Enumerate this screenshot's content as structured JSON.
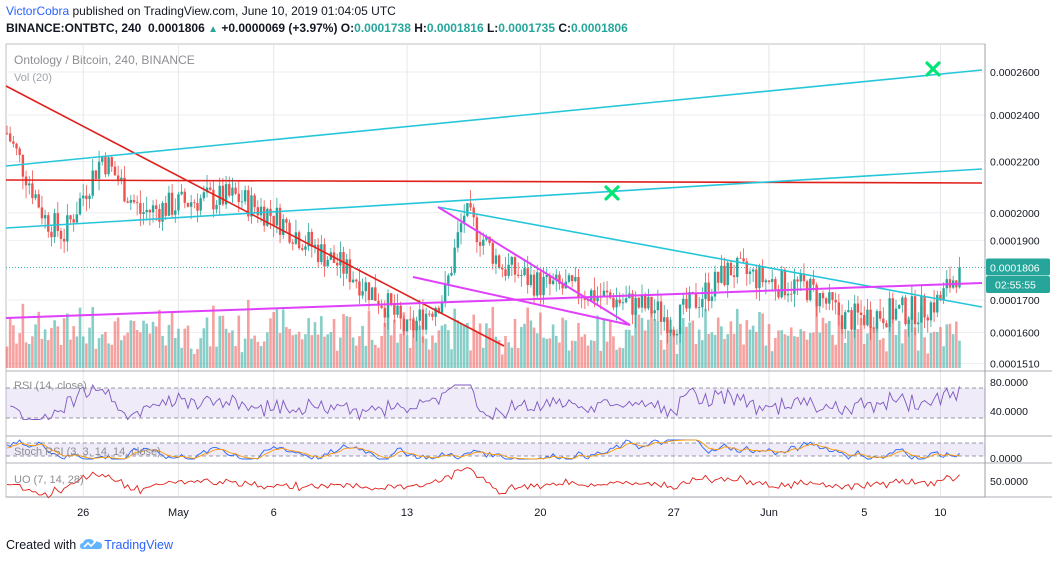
{
  "header": {
    "author": "VictorCobra",
    "published_text": "published on TradingView.com, June 10, 2019 01:04:05 UTC",
    "symbol_line": "BINANCE:ONTBTC, 240",
    "last_price": "0.0001806",
    "change": "+0.0000069 (+3.97%)",
    "o_label": "O:",
    "o_value": "0.0001738",
    "h_label": "H:",
    "h_value": "0.0001816",
    "l_label": "L:",
    "l_value": "0.0001735",
    "c_label": "C:",
    "c_value": "0.0001806"
  },
  "footer": {
    "created_with": "Created with",
    "brand": "TradingView"
  },
  "chart_data": {
    "type": "candlestick",
    "title": "Ontology / Bitcoin, 240, BINANCE",
    "volume_label": "Vol (20)",
    "price_axis_ticks": [
      "0.0002600",
      "0.0002400",
      "0.0002200",
      "0.0002000",
      "0.0001900",
      "0.0001700",
      "0.0001600",
      "0.0001510"
    ],
    "price_label": "0.0001806",
    "countdown_label": "02:55:55",
    "x_ticks": [
      "26",
      "May",
      "6",
      "13",
      "20",
      "27",
      "Jun",
      "5",
      "10"
    ],
    "scale": "log",
    "ohlc_close_anchors": [
      {
        "x": "Apr 22",
        "price": 0.000232
      },
      {
        "x": "Apr 24",
        "price": 0.000198
      },
      {
        "x": "Apr 25",
        "price": 0.000192
      },
      {
        "x": "Apr 27",
        "price": 0.000222
      },
      {
        "x": "Apr 29",
        "price": 0.0002
      },
      {
        "x": "May 1",
        "price": 0.000205
      },
      {
        "x": "May 3",
        "price": 0.000206
      },
      {
        "x": "May 5",
        "price": 0.000199
      },
      {
        "x": "May 7",
        "price": 0.000188
      },
      {
        "x": "May 9",
        "price": 0.000179
      },
      {
        "x": "May 11",
        "price": 0.000168
      },
      {
        "x": "May 12",
        "price": 0.00016
      },
      {
        "x": "May 13",
        "price": 0.000166
      },
      {
        "x": "May 14",
        "price": 0.000172
      },
      {
        "x": "May 15",
        "price": 0.0002
      },
      {
        "x": "May 17",
        "price": 0.000181
      },
      {
        "x": "May 19",
        "price": 0.000175
      },
      {
        "x": "May 21",
        "price": 0.000173
      },
      {
        "x": "May 23",
        "price": 0.00017
      },
      {
        "x": "May 25",
        "price": 0.000167
      },
      {
        "x": "May 26",
        "price": 0.000163
      },
      {
        "x": "May 27",
        "price": 0.000169
      },
      {
        "x": "May 29",
        "price": 0.00018
      },
      {
        "x": "May 31",
        "price": 0.000176
      },
      {
        "x": "Jun 2",
        "price": 0.000174
      },
      {
        "x": "Jun 4",
        "price": 0.000164
      },
      {
        "x": "Jun 6",
        "price": 0.000166
      },
      {
        "x": "Jun 8",
        "price": 0.000167
      },
      {
        "x": "Jun 9",
        "price": 0.00017
      },
      {
        "x": "Jun 10",
        "price": 0.0001806
      }
    ],
    "overlays": [
      {
        "name": "red descending trendline",
        "color": "#e0201b"
      },
      {
        "name": "red horizontal resistance",
        "color": "#e0201b"
      },
      {
        "name": "cyan ascending channel upper",
        "color": "#26c6da"
      },
      {
        "name": "cyan ascending channel lower",
        "color": "#26c6da"
      },
      {
        "name": "cyan descending trendline",
        "color": "#26c6da"
      },
      {
        "name": "magenta support line",
        "color": "#e040fb"
      },
      {
        "name": "magenta falling wedge",
        "color": "#e040fb"
      },
      {
        "name": "green target markers",
        "color": "#00e676",
        "count": 2
      }
    ],
    "indicators": [
      {
        "name": "RSI (14, close)",
        "ticks": [
          "80.0000",
          "40.0000"
        ],
        "last": 72
      },
      {
        "name": "Stoch RSI (3, 3, 14, 14, close)",
        "ticks": [
          "0.0000"
        ]
      },
      {
        "name": "UO (7, 14, 28)",
        "ticks": [
          "50.0000"
        ],
        "last": 57
      }
    ],
    "grid": true,
    "candle_up_color": "#26a69a",
    "candle_down_color": "#ef5350",
    "background": "#ffffff"
  }
}
